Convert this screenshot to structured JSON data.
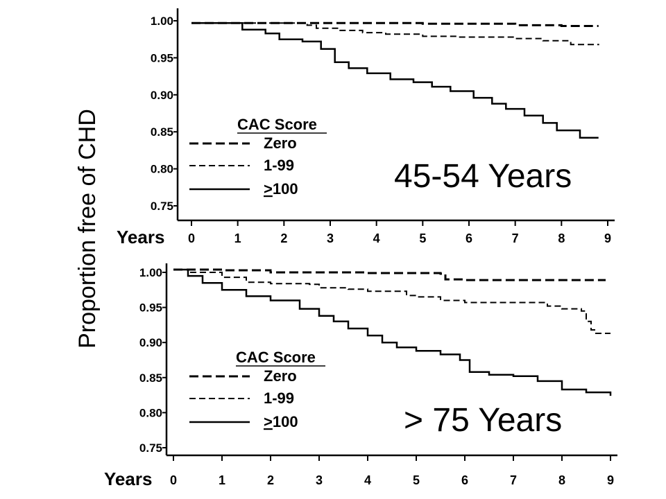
{
  "ylabel": "Proportion free of CHD",
  "chart_data": [
    {
      "type": "line",
      "title": "45-54 Years",
      "xlabel": "Years",
      "ylabel": "Proportion free of CHD",
      "xlim": [
        0,
        9
      ],
      "ylim": [
        0.75,
        1.0
      ],
      "x_ticks": [
        "0",
        "1",
        "2",
        "3",
        "4",
        "5",
        "6",
        "7",
        "8",
        "9"
      ],
      "y_ticks": [
        "1.00",
        "0.95",
        "0.90",
        "0.85",
        "0.80",
        "0.75"
      ],
      "legend_title": "CAC Score",
      "legend_position": "lower-left",
      "grid": false,
      "series": [
        {
          "name": "Zero",
          "style": "dashed-heavy",
          "points": [
            [
              0,
              0.997
            ],
            [
              2.5,
              0.997
            ],
            [
              5,
              0.996
            ],
            [
              7,
              0.994
            ],
            [
              8,
              0.993
            ],
            [
              8.8,
              0.993
            ]
          ]
        },
        {
          "name": "1-99",
          "style": "dashed-light",
          "points": [
            [
              0,
              0.997
            ],
            [
              2.4,
              0.997
            ],
            [
              2.5,
              0.994
            ],
            [
              2.7,
              0.99
            ],
            [
              3.2,
              0.987
            ],
            [
              3.7,
              0.984
            ],
            [
              4.2,
              0.982
            ],
            [
              5,
              0.979
            ],
            [
              5.8,
              0.978
            ],
            [
              6.5,
              0.978
            ],
            [
              7,
              0.976
            ],
            [
              7.6,
              0.973
            ],
            [
              8.2,
              0.968
            ],
            [
              8.8,
              0.967
            ]
          ]
        },
        {
          "name": ">100",
          "style": "solid",
          "points": [
            [
              0,
              0.997
            ],
            [
              0.8,
              0.997
            ],
            [
              1.1,
              0.988
            ],
            [
              1.6,
              0.983
            ],
            [
              1.9,
              0.975
            ],
            [
              2.4,
              0.972
            ],
            [
              2.8,
              0.962
            ],
            [
              3.1,
              0.944
            ],
            [
              3.4,
              0.936
            ],
            [
              3.8,
              0.929
            ],
            [
              4.3,
              0.921
            ],
            [
              4.8,
              0.917
            ],
            [
              5.2,
              0.911
            ],
            [
              5.6,
              0.905
            ],
            [
              6.1,
              0.896
            ],
            [
              6.5,
              0.888
            ],
            [
              6.8,
              0.881
            ],
            [
              7.2,
              0.872
            ],
            [
              7.6,
              0.862
            ],
            [
              7.9,
              0.852
            ],
            [
              8.4,
              0.842
            ],
            [
              8.8,
              0.842
            ]
          ]
        }
      ]
    },
    {
      "type": "line",
      "title": "> 75 Years",
      "xlabel": "Years",
      "ylabel": "Proportion free of CHD",
      "xlim": [
        0,
        9
      ],
      "ylim": [
        0.75,
        1.0
      ],
      "x_ticks": [
        "0",
        "1",
        "2",
        "3",
        "4",
        "5",
        "6",
        "7",
        "8",
        "9"
      ],
      "y_ticks": [
        "1.00",
        "0.95",
        "0.90",
        "0.85",
        "0.80",
        "0.75"
      ],
      "legend_title": "CAC Score",
      "legend_position": "lower-left",
      "grid": false,
      "series": [
        {
          "name": "Zero",
          "style": "dashed-heavy",
          "points": [
            [
              0,
              1.004
            ],
            [
              1,
              1.003
            ],
            [
              2,
              1.0
            ],
            [
              3,
              1.0
            ],
            [
              4,
              0.999
            ],
            [
              5,
              0.999
            ],
            [
              5.5,
              0.998
            ],
            [
              5.6,
              0.99
            ],
            [
              6,
              0.989
            ],
            [
              7,
              0.989
            ],
            [
              8,
              0.989
            ],
            [
              8.9,
              0.989
            ]
          ]
        },
        {
          "name": "1-99",
          "style": "dashed-light",
          "points": [
            [
              0,
              1.004
            ],
            [
              0.3,
              1.0
            ],
            [
              1,
              0.993
            ],
            [
              1.5,
              0.986
            ],
            [
              2,
              0.984
            ],
            [
              2.8,
              0.983
            ],
            [
              3,
              0.978
            ],
            [
              3.6,
              0.976
            ],
            [
              4,
              0.973
            ],
            [
              4.8,
              0.967
            ],
            [
              5,
              0.965
            ],
            [
              5.5,
              0.96
            ],
            [
              6,
              0.957
            ],
            [
              7,
              0.957
            ],
            [
              7.7,
              0.952
            ],
            [
              8,
              0.948
            ],
            [
              8.4,
              0.945
            ],
            [
              8.5,
              0.93
            ],
            [
              8.6,
              0.918
            ],
            [
              8.7,
              0.913
            ],
            [
              9,
              0.913
            ]
          ]
        },
        {
          "name": ">100",
          "style": "solid",
          "points": [
            [
              0,
              1.004
            ],
            [
              0.3,
              0.995
            ],
            [
              0.6,
              0.985
            ],
            [
              1,
              0.975
            ],
            [
              1.5,
              0.966
            ],
            [
              2,
              0.96
            ],
            [
              2.6,
              0.948
            ],
            [
              3,
              0.938
            ],
            [
              3.3,
              0.93
            ],
            [
              3.6,
              0.92
            ],
            [
              4,
              0.91
            ],
            [
              4.3,
              0.9
            ],
            [
              4.6,
              0.893
            ],
            [
              5,
              0.888
            ],
            [
              5.5,
              0.883
            ],
            [
              5.9,
              0.875
            ],
            [
              6.1,
              0.858
            ],
            [
              6.5,
              0.854
            ],
            [
              7,
              0.852
            ],
            [
              7.5,
              0.845
            ],
            [
              8,
              0.833
            ],
            [
              8.5,
              0.829
            ],
            [
              9,
              0.824
            ]
          ]
        }
      ]
    }
  ]
}
